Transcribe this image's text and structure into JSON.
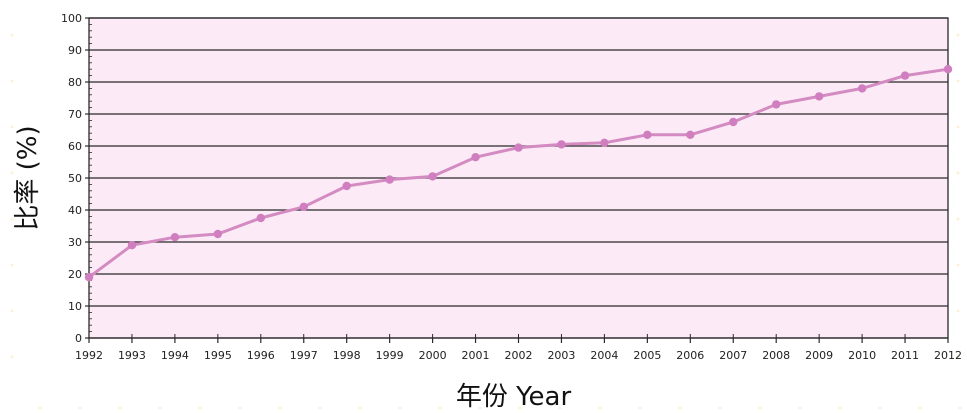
{
  "chart_data": {
    "type": "line",
    "xlabel": "年份 Year",
    "ylabel": "比率 (%)",
    "ylim": [
      0,
      100
    ],
    "yticks": [
      0,
      10,
      20,
      30,
      40,
      50,
      60,
      70,
      80,
      90,
      100
    ],
    "grid": true,
    "x": [
      "1992",
      "1993",
      "1994",
      "1995",
      "1996",
      "1997",
      "1998",
      "1999",
      "2000",
      "2001",
      "2002",
      "2003",
      "2004",
      "2005",
      "2006",
      "2007",
      "2008",
      "2009",
      "2010",
      "2011",
      "2012"
    ],
    "series": [
      {
        "values": [
          19,
          29,
          31.5,
          32.5,
          37.5,
          41,
          47.5,
          49.5,
          50.5,
          56.5,
          59.5,
          60.5,
          61,
          63.5,
          63.5,
          67.5,
          73,
          75.5,
          78,
          82,
          84
        ],
        "color": "#d38bc2"
      }
    ],
    "colors": {
      "plot_background": "#fcebf6",
      "grid": "#2a2a2a",
      "line": "#d38bc2",
      "marker": "#d07ec0"
    }
  }
}
